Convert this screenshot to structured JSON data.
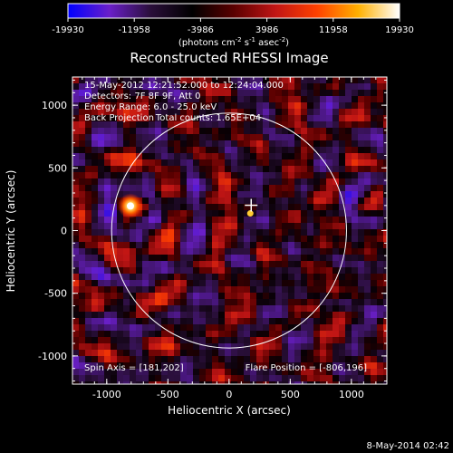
{
  "colorbar": {
    "ticks": [
      "-19930",
      "-11958",
      "-3986",
      "3986",
      "11958",
      "19930"
    ],
    "units": "(photons cm",
    "units_exp1": "-2",
    "units_mid": " s",
    "units_exp2": "-1",
    "units_end": " asec",
    "units_exp3": "-2",
    "units_close": ")"
  },
  "image": {
    "title": "Reconstructed RHESSI Image",
    "time_range": "15-May-2012 12:21:52.000 to 12:24:04.000",
    "detectors": "Detectors: 7F 8F 9F, Att 0",
    "energy": "Energy Range: 6.0 - 25.0 keV",
    "method": "Back Projection",
    "total_counts": "Total counts: 1.65E+04",
    "spin_axis": "Spin Axis = [181,202]",
    "flare_position": "Flare Position = [-806,196]",
    "timestamp": "8-May-2014 02:42"
  },
  "colors": {
    "background": "#000000",
    "colormap": [
      "#0000ff",
      "#6a1fc9",
      "#2a0f3a",
      "#000000",
      "#5a0000",
      "#c01515",
      "#ff4000",
      "#ffb000",
      "#ffffff"
    ]
  },
  "chart_data": {
    "type": "heatmap",
    "title": "Reconstructed RHESSI Image",
    "xlabel": "Heliocentric X (arcsec)",
    "ylabel": "Heliocentric Y (arcsec)",
    "xlim": [
      -1280,
      1290
    ],
    "ylim": [
      -1225,
      1225
    ],
    "x_ticks": [
      -1000,
      -500,
      0,
      500,
      1000
    ],
    "y_ticks": [
      -1000,
      -500,
      0,
      500,
      1000
    ],
    "value_range": [
      -19930,
      19930
    ],
    "solar_disk_radius_arcsec": 960,
    "flare_position": [
      -806,
      196
    ],
    "spin_axis": [
      181,
      202
    ],
    "grid": false
  }
}
